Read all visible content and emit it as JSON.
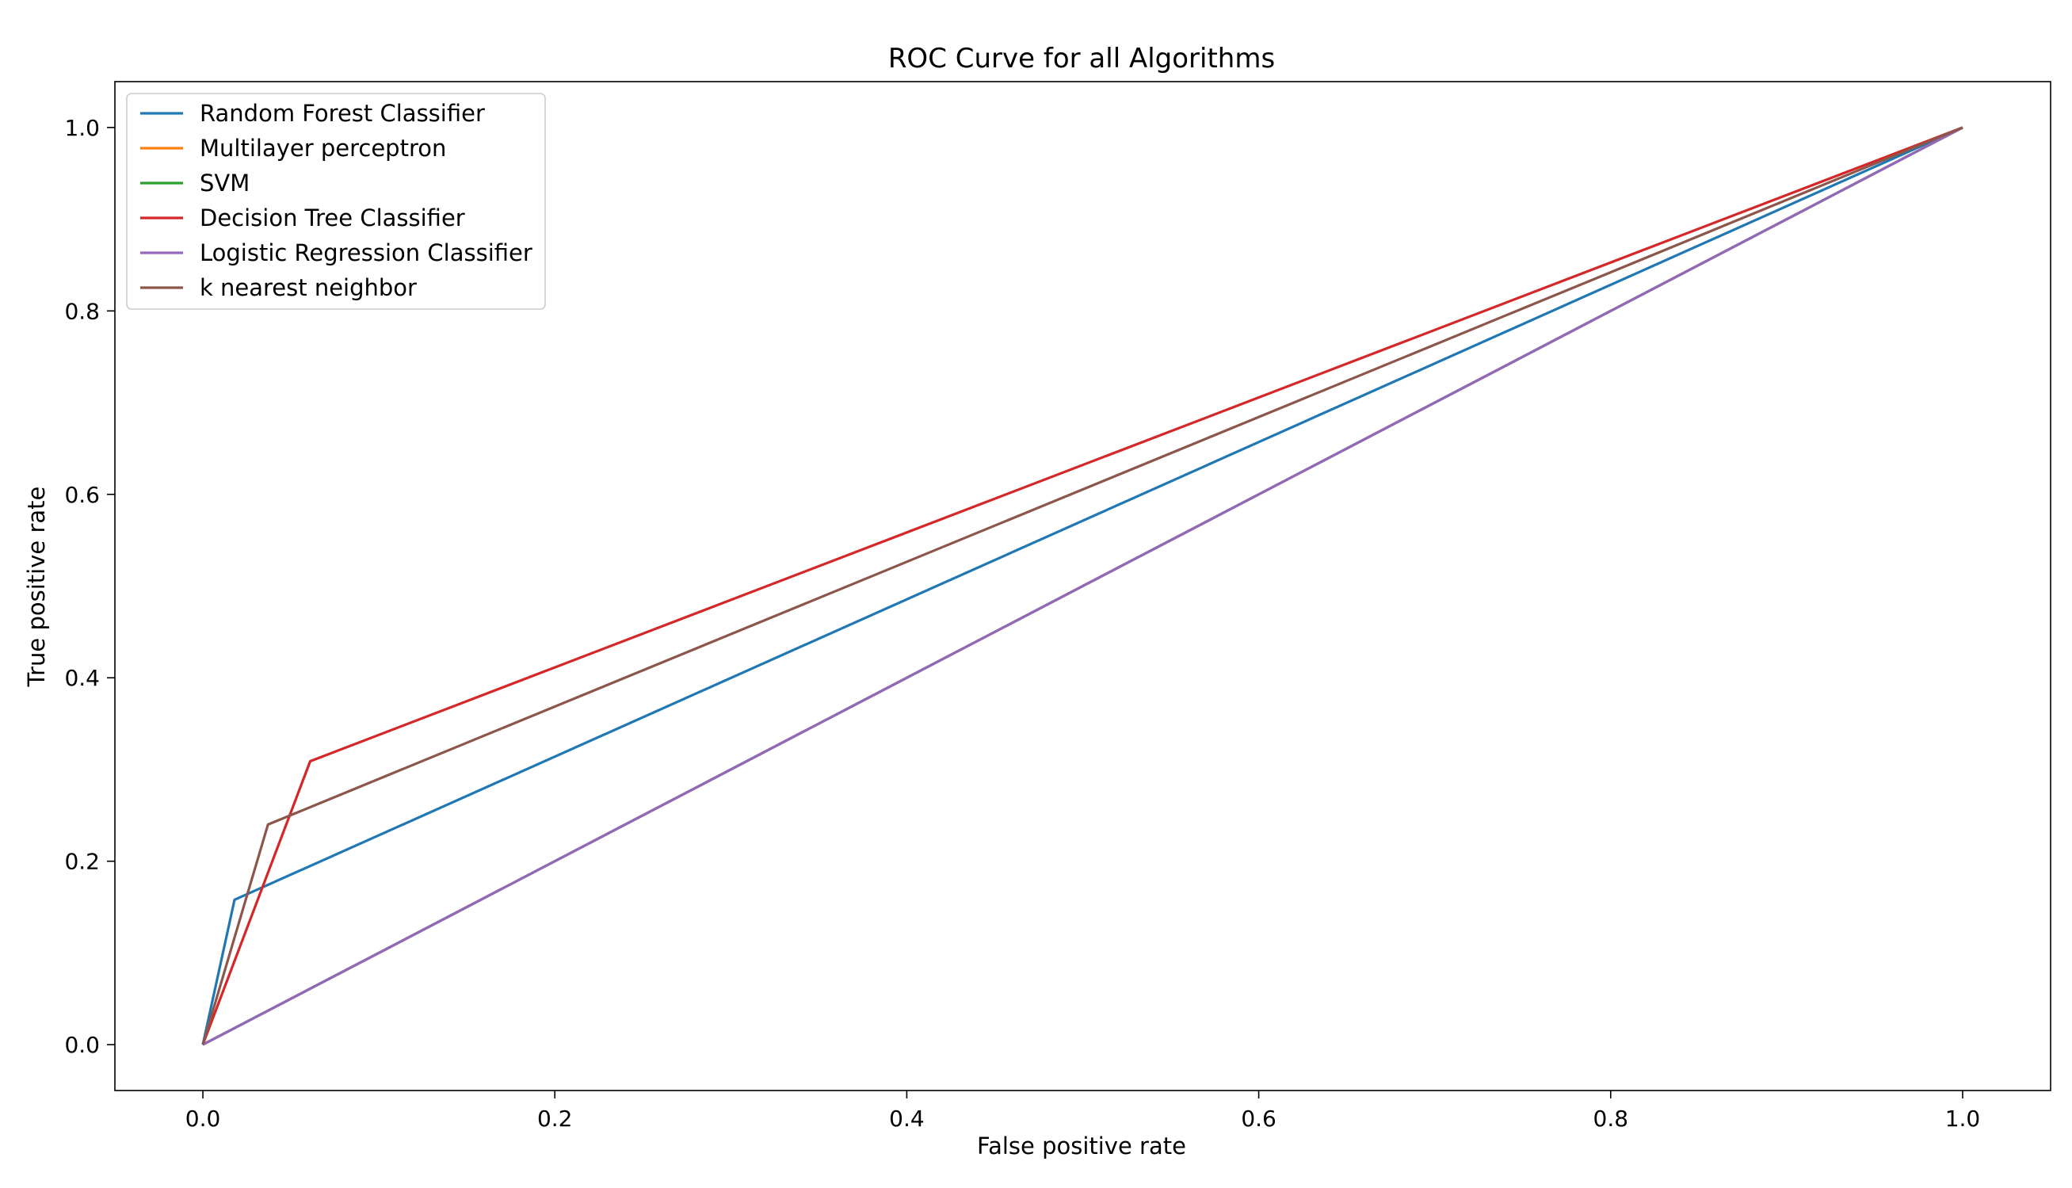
{
  "chart_data": {
    "type": "line",
    "title": "ROC Curve for all Algorithms",
    "xlabel": "False positive rate",
    "ylabel": "True positive rate",
    "xlim": [
      -0.05,
      1.05
    ],
    "ylim": [
      -0.05,
      1.05
    ],
    "xticks": [
      0.0,
      0.2,
      0.4,
      0.6,
      0.8,
      1.0
    ],
    "xtick_labels": [
      "0.0",
      "0.2",
      "0.4",
      "0.6",
      "0.8",
      "1.0"
    ],
    "yticks": [
      0.0,
      0.2,
      0.4,
      0.6,
      0.8,
      1.0
    ],
    "ytick_labels": [
      "0.0",
      "0.2",
      "0.4",
      "0.6",
      "0.8",
      "1.0"
    ],
    "grid": false,
    "legend_position": "upper left",
    "series": [
      {
        "name": "Random Forest Classifier",
        "color": "#1f77b4",
        "x": [
          0.0,
          0.018,
          1.0
        ],
        "y": [
          0.0,
          0.158,
          1.0
        ]
      },
      {
        "name": "Multilayer perceptron",
        "color": "#ff7f0e",
        "x": [
          0.0,
          1.0
        ],
        "y": [
          0.0,
          1.0
        ]
      },
      {
        "name": "SVM",
        "color": "#2ca02c",
        "x": [
          0.0,
          1.0
        ],
        "y": [
          0.0,
          1.0
        ]
      },
      {
        "name": "Decision Tree Classifier",
        "color": "#d62728",
        "x": [
          0.0,
          0.061,
          1.0
        ],
        "y": [
          0.0,
          0.309,
          1.0
        ]
      },
      {
        "name": "Logistic Regression Classifier",
        "color": "#9467bd",
        "x": [
          0.0,
          1.0
        ],
        "y": [
          0.0,
          1.0
        ]
      },
      {
        "name": "k nearest neighbor",
        "color": "#8c564b",
        "x": [
          0.0,
          0.037,
          1.0
        ],
        "y": [
          0.0,
          0.24,
          1.0
        ]
      }
    ]
  }
}
